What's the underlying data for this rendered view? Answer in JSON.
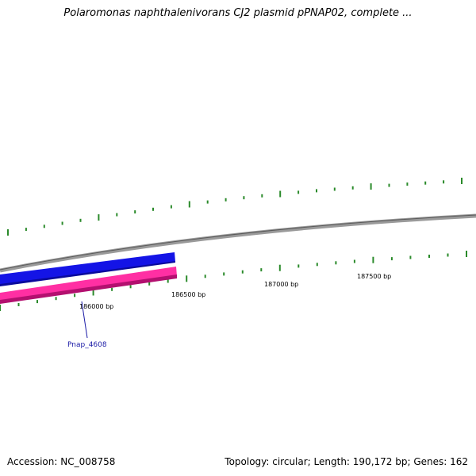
{
  "title": "Polaromonas naphthalenivorans CJ2 plasmid pPNAP02, complete ...",
  "footer": {
    "accession": "Accession: NC_008758",
    "topology": "Topology: circular; Length: 190,172 bp; Genes: 162"
  },
  "ticks": [
    "186000 bp",
    "186500 bp",
    "187000 bp",
    "187500 bp"
  ],
  "genes": [
    {
      "name": "Pnap_4608"
    }
  ],
  "colors": {
    "backbone": "#888888",
    "plus_strand": "#1414e6",
    "minus_strand": "#ff33a8",
    "tick": "#2a8a2a",
    "gene_label": "#1a1aa6"
  }
}
